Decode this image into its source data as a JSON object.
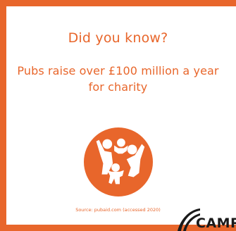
{
  "card": {
    "heading": "Did you know?",
    "fact_line1": "Pubs raise over £100 million a year",
    "fact_line2": "for charity",
    "source": "Source: pubaid.com (accessed 2020)"
  },
  "badge": {
    "icon": "family-group-icon"
  },
  "logo": {
    "text": "CAMRA"
  },
  "colors": {
    "accent": "#e8662b",
    "background": "#ffffff",
    "logo": "#1a1a1a"
  }
}
